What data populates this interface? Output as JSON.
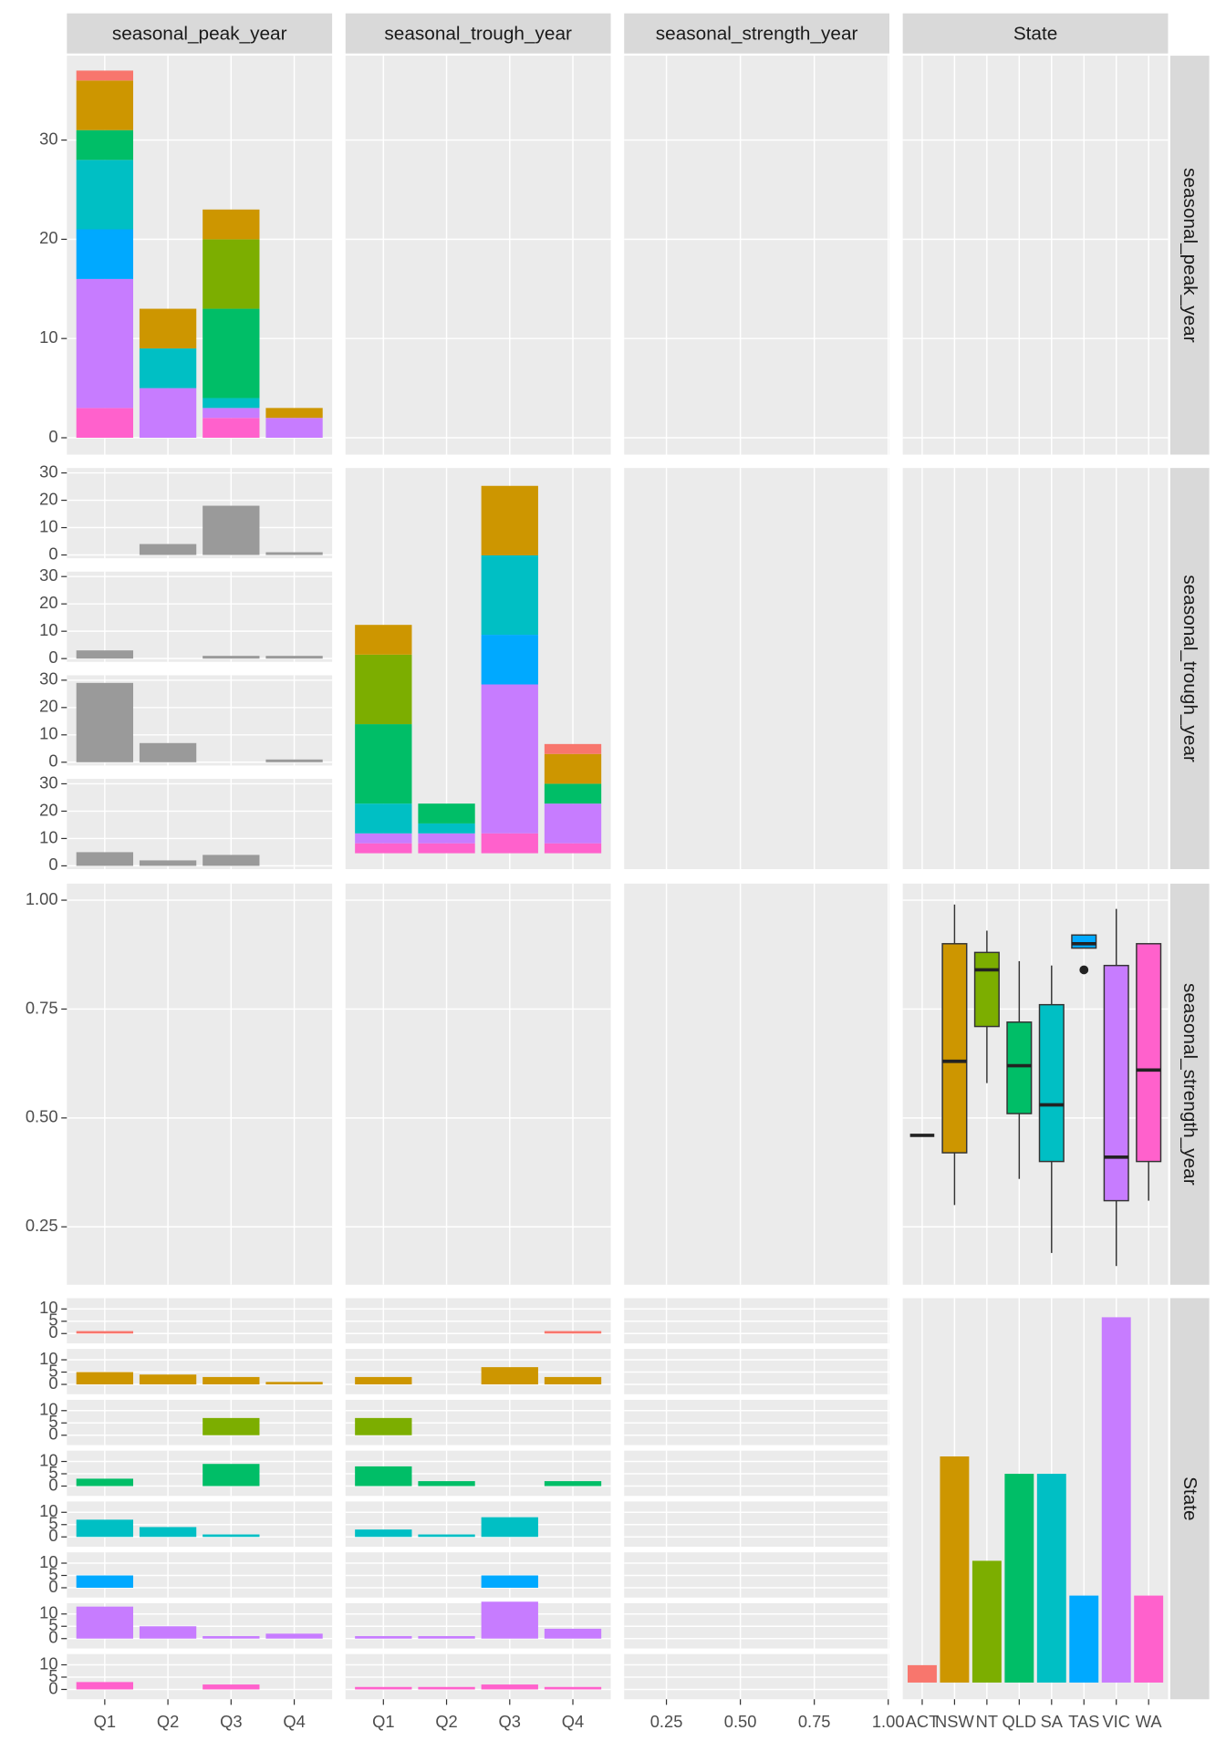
{
  "panel_labels": [
    "seasonal_peak_year",
    "seasonal_trough_year",
    "seasonal_strength_year",
    "State"
  ],
  "chart_data": [
    {
      "type": "bar",
      "stacked": true,
      "categories": [
        "Q1",
        "Q2",
        "Q3",
        "Q4"
      ],
      "series": [
        {
          "color": "#F8766D",
          "values": [
            1,
            0,
            0,
            0
          ]
        },
        {
          "color": "#CD9600",
          "values": [
            5,
            4,
            3,
            1
          ]
        },
        {
          "color": "#7CAE00",
          "values": [
            0,
            0,
            7,
            0
          ]
        },
        {
          "color": "#00BE67",
          "values": [
            3,
            0,
            9,
            0
          ]
        },
        {
          "color": "#00BFC4",
          "values": [
            7,
            4,
            1,
            0
          ]
        },
        {
          "color": "#00A9FF",
          "values": [
            5,
            0,
            0,
            0
          ]
        },
        {
          "color": "#C77CFF",
          "values": [
            13,
            5,
            1,
            2
          ]
        },
        {
          "color": "#FF61CC",
          "values": [
            3,
            0,
            2,
            0
          ]
        }
      ],
      "ylim": [
        -1.7,
        38.5
      ],
      "yticks": [
        0,
        10,
        20,
        30
      ],
      "grid": true
    },
    {
      "type": "bar",
      "stacked": true,
      "categories": [
        "Q1",
        "Q2",
        "Q3",
        "Q4"
      ],
      "series": [
        {
          "color": "#F8766D",
          "values": [
            0,
            0,
            0,
            1
          ]
        },
        {
          "color": "#CD9600",
          "values": [
            3,
            0,
            7,
            3
          ]
        },
        {
          "color": "#7CAE00",
          "values": [
            7,
            0,
            0,
            0
          ]
        },
        {
          "color": "#00BE67",
          "values": [
            8,
            2,
            0,
            2
          ]
        },
        {
          "color": "#00BFC4",
          "values": [
            3,
            1,
            8,
            0
          ]
        },
        {
          "color": "#00A9FF",
          "values": [
            0,
            0,
            5,
            0
          ]
        },
        {
          "color": "#C77CFF",
          "values": [
            1,
            1,
            15,
            4
          ]
        },
        {
          "color": "#FF61CC",
          "values": [
            1,
            1,
            2,
            1
          ]
        }
      ],
      "ylim": [
        -1.6,
        38.8
      ]
    },
    {
      "type": "bar",
      "categories": [
        "ACT",
        "NSW",
        "NT",
        "QLD",
        "SA",
        "TAS",
        "VIC",
        "WA"
      ],
      "values": [
        1,
        13,
        7,
        12,
        12,
        5,
        21,
        5
      ],
      "colors": [
        "#F8766D",
        "#CD9600",
        "#7CAE00",
        "#00BE67",
        "#00BFC4",
        "#00A9FF",
        "#C77CFF",
        "#FF61CC"
      ],
      "ylim": [
        -0.96,
        22.1
      ]
    },
    {
      "type": "boxplot",
      "boxes": [
        {
          "min": 0.46,
          "q1": 0.46,
          "median": 0.46,
          "q3": 0.46,
          "max": 0.46,
          "outliers": []
        },
        {
          "min": 0.3,
          "q1": 0.42,
          "median": 0.63,
          "q3": 0.9,
          "max": 0.99,
          "outliers": []
        },
        {
          "min": 0.58,
          "q1": 0.71,
          "median": 0.84,
          "q3": 0.88,
          "max": 0.93,
          "outliers": []
        },
        {
          "min": 0.36,
          "q1": 0.51,
          "median": 0.62,
          "q3": 0.72,
          "max": 0.86,
          "outliers": []
        },
        {
          "min": 0.19,
          "q1": 0.4,
          "median": 0.53,
          "q3": 0.76,
          "max": 0.85,
          "outliers": []
        },
        {
          "min": 0.89,
          "q1": 0.89,
          "median": 0.9,
          "q3": 0.92,
          "max": 0.92,
          "outliers": [
            0.84
          ]
        },
        {
          "min": 0.16,
          "q1": 0.31,
          "median": 0.41,
          "q3": 0.85,
          "max": 0.98,
          "outliers": []
        },
        {
          "min": 0.31,
          "q1": 0.4,
          "median": 0.61,
          "q3": 0.9,
          "max": 0.9,
          "outliers": []
        }
      ],
      "ylim": [
        0.117,
        1.038
      ],
      "yticks": [
        0.25,
        {
          "value": 0.5,
          "label": "0.50"
        },
        0.75,
        {
          "value": 1,
          "label": "1.00"
        }
      ]
    },
    {
      "type": "bar",
      "color": "#9A9A9A",
      "facets": [
        [
          0,
          4,
          18,
          1
        ],
        [
          3,
          0,
          1,
          1
        ],
        [
          29,
          7,
          0,
          1
        ],
        [
          5,
          2,
          4,
          0
        ]
      ],
      "ylim": [
        -1.2,
        31.8
      ],
      "yticks": [
        0,
        10,
        20,
        30
      ]
    },
    {
      "type": "bar",
      "ylim": [
        -4,
        14.4
      ],
      "yticks": [
        0,
        5,
        10
      ]
    },
    {
      "type": "density",
      "xlim": [
        0.107,
        1.004
      ],
      "xticks": [
        0.25,
        {
          "value": 0.5,
          "label": "0.50"
        },
        0.75,
        {
          "value": 1,
          "label": "1.00"
        }
      ]
    }
  ]
}
